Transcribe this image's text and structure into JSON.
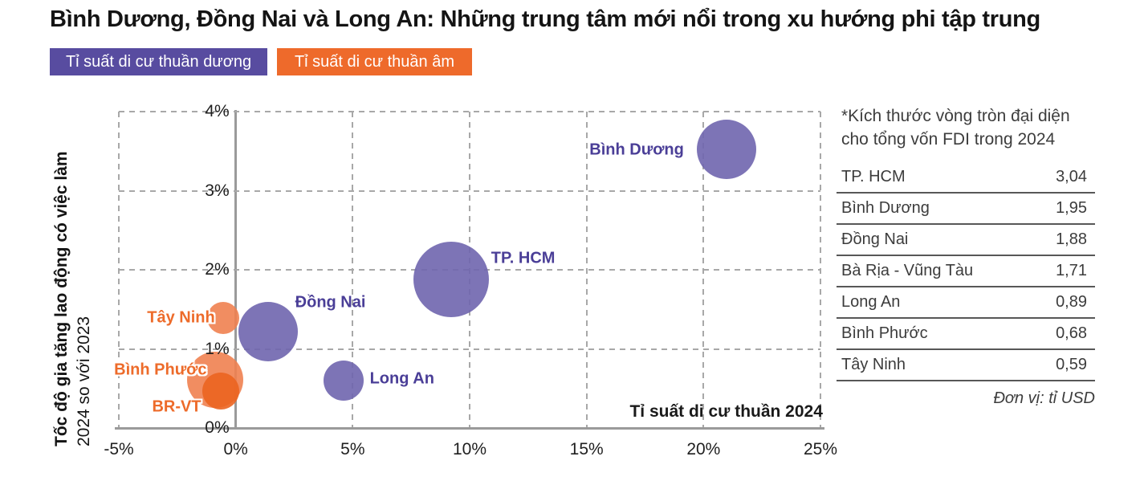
{
  "title": "Bình Dương, Đồng Nai và Long An: Những trung tâm mới nổi trong xu hướng phi tập trung",
  "legend": {
    "positive": {
      "label": "Tỉ suất di cư thuần dương",
      "color": "#584CA0"
    },
    "negative": {
      "label": "Tỉ suất di cư thuần âm",
      "color": "#EE6A2B"
    }
  },
  "chart_data": {
    "type": "scatter",
    "xlabel": "Tỉ suất di cư thuần 2024",
    "ylabel": "Tốc độ gia tăng lao động có việc làm",
    "ylabel_line2": "2024 so với 2023",
    "xlim": [
      -5,
      25
    ],
    "ylim": [
      0,
      4
    ],
    "x_ticks": [
      {
        "v": -5,
        "label": "-5%"
      },
      {
        "v": 0,
        "label": "0%"
      },
      {
        "v": 5,
        "label": "5%"
      },
      {
        "v": 10,
        "label": "10%"
      },
      {
        "v": 15,
        "label": "15%"
      },
      {
        "v": 20,
        "label": "20%"
      },
      {
        "v": 25,
        "label": "25%"
      }
    ],
    "y_ticks": [
      {
        "v": 0,
        "label": "0%"
      },
      {
        "v": 1,
        "label": "1%"
      },
      {
        "v": 2,
        "label": "2%"
      },
      {
        "v": 3,
        "label": "3%"
      },
      {
        "v": 4,
        "label": "4%"
      }
    ],
    "grid": "dashed",
    "size_encoding": "bubble area = tổng vốn FDI 2024 (tỉ USD)",
    "bubbles": [
      {
        "slug": "tay-ninh",
        "name": "Tây Ninh",
        "x": -0.55,
        "y": 1.39,
        "r": 20,
        "fdi": 0.59,
        "fill": "#EF8150",
        "label_class": "lbl-orange",
        "label": {
          "x": -0.89,
          "y": 1.39,
          "align": "right"
        }
      },
      {
        "slug": "br-vt",
        "name": "BR-VT",
        "x": -0.89,
        "y": 0.61,
        "r": 35,
        "fdi": 1.71,
        "fill": "#EF8150",
        "label_class": "lbl-orange",
        "label": {
          "x": -1.48,
          "y": 0.26,
          "align": "right"
        }
      },
      {
        "slug": "binh-phuoc",
        "name": "Bình Phước",
        "x": -0.65,
        "y": 0.47,
        "r": 23,
        "fdi": 0.68,
        "fill": "#EB6420",
        "label_class": "lbl-orange",
        "label": {
          "x": -1.24,
          "y": 0.73,
          "align": "right"
        }
      },
      {
        "slug": "dong-nai",
        "name": "Đồng Nai",
        "x": 1.4,
        "y": 1.22,
        "r": 37,
        "fdi": 1.88,
        "fill": "#6F65AE",
        "label_class": "lbl-purple",
        "label": {
          "x": 2.54,
          "y": 1.58,
          "align": "left"
        }
      },
      {
        "slug": "long-an",
        "name": "Long An",
        "x": 4.6,
        "y": 0.6,
        "r": 25,
        "fdi": 0.89,
        "fill": "#6F65AE",
        "label_class": "lbl-purple",
        "label": {
          "x": 5.73,
          "y": 0.62,
          "align": "left"
        }
      },
      {
        "slug": "tp-hcm",
        "name": "TP. HCM",
        "x": 9.2,
        "y": 1.88,
        "r": 47,
        "fdi": 3.04,
        "fill": "#6F65AE",
        "label_class": "lbl-purple",
        "label": {
          "x": 10.92,
          "y": 2.14,
          "align": "left"
        }
      },
      {
        "slug": "binh-duong",
        "name": "Bình Dương",
        "x": 21.0,
        "y": 3.52,
        "r": 37,
        "fdi": 1.95,
        "fill": "#6F65AE",
        "label_class": "lbl-purple",
        "label": {
          "x": 19.16,
          "y": 3.51,
          "align": "right"
        }
      }
    ],
    "xlabel_anchor": {
      "x": 25.1,
      "y": 0.2,
      "align": "right"
    }
  },
  "panel": {
    "note_line1": "*Kích thước vòng tròn đại diện",
    "note_line2": "cho tổng vốn FDI trong 2024",
    "rows": [
      {
        "label": "TP. HCM",
        "value": "3,04"
      },
      {
        "label": "Bình Dương",
        "value": "1,95"
      },
      {
        "label": "Đồng Nai",
        "value": "1,88"
      },
      {
        "label": "Bà Rịa - Vũng Tàu",
        "value": "1,71"
      },
      {
        "label": "Long An",
        "value": "0,89"
      },
      {
        "label": "Bình Phước",
        "value": "0,68"
      },
      {
        "label": "Tây Ninh",
        "value": "0,59"
      }
    ],
    "unit": "Đơn vị: tỉ USD"
  }
}
